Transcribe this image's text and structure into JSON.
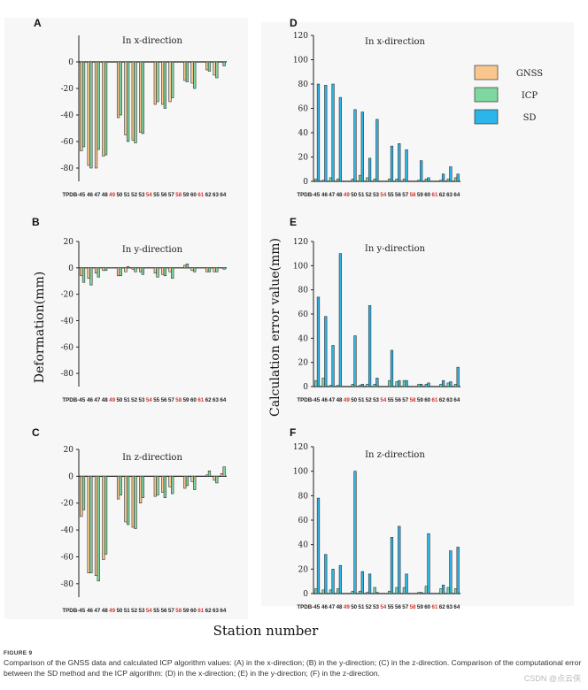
{
  "figure": {
    "label": "FIGURE 9",
    "caption": "Comparison of the GNSS data and calculated ICP algorithm values: (A) in the x-direction; (B) in the y-direction; (C) in the z-direction. Comparison of the computational error between the SD method and the ICP algorithm: (D) in the x-direction; (E) in the y-direction; (F) in the z-direction.",
    "watermark": "CSDN @点云侠",
    "ylabel_left": "Deformation(mm)",
    "ylabel_right": "Calculation error value(mm)",
    "xlabel": "Station number",
    "colors": {
      "GNSS": "#f9c68e",
      "ICP": "#7ed8a0",
      "SD": "#2cb5e8",
      "highlight": "#d0342c"
    },
    "legend": [
      "GNSS",
      "ICP",
      "SD"
    ]
  },
  "chart_data": [
    {
      "type": "bar",
      "panel": "A",
      "title": "In x-direction",
      "categories": [
        "TPDB-45",
        "46",
        "47",
        "48",
        "49",
        "50",
        "51",
        "52",
        "53",
        "54",
        "55",
        "56",
        "57",
        "58",
        "59",
        "60",
        "61",
        "62",
        "63",
        "64"
      ],
      "highlight_categories": [
        "49",
        "54",
        "58",
        "61"
      ],
      "ylim": [
        -90,
        20
      ],
      "yticks": [
        -80,
        -60,
        -40,
        -20,
        0
      ],
      "series": [
        {
          "name": "GNSS",
          "values": [
            -67,
            -78,
            -80,
            -71,
            0,
            -42,
            -55,
            -59,
            -53,
            0,
            -32,
            -32,
            -30,
            0,
            -14,
            -16,
            0,
            -6,
            -10,
            0
          ]
        },
        {
          "name": "ICP",
          "values": [
            -64,
            -80,
            -66,
            -70,
            0,
            -40,
            -60,
            -61,
            -54,
            0,
            -30,
            -35,
            -27,
            0,
            -15,
            -20,
            0,
            -7,
            -12,
            -3
          ]
        }
      ]
    },
    {
      "type": "bar",
      "panel": "B",
      "title": "In y-direction",
      "categories": [
        "TPDB-45",
        "46",
        "47",
        "48",
        "49",
        "50",
        "51",
        "52",
        "53",
        "54",
        "55",
        "56",
        "57",
        "58",
        "59",
        "60",
        "61",
        "62",
        "63",
        "64"
      ],
      "highlight_categories": [
        "49",
        "54",
        "58",
        "61"
      ],
      "ylim": [
        -90,
        20
      ],
      "yticks": [
        -80,
        -60,
        -40,
        -20,
        0,
        20
      ],
      "series": [
        {
          "name": "GNSS",
          "values": [
            -6,
            -8,
            -4,
            -2,
            0,
            -6,
            -3,
            -1,
            -3,
            0,
            -4,
            -5,
            -3,
            0,
            2,
            -2,
            0,
            -3,
            -3,
            0
          ]
        },
        {
          "name": "ICP",
          "values": [
            -11,
            -13,
            -7,
            -2,
            0,
            -6,
            1,
            -3,
            -5,
            0,
            -7,
            -6,
            -8,
            0,
            3,
            -3,
            0,
            -3,
            -3,
            -1
          ]
        }
      ]
    },
    {
      "type": "bar",
      "panel": "C",
      "title": "In z-direction",
      "categories": [
        "TPDB-45",
        "46",
        "47",
        "48",
        "49",
        "50",
        "51",
        "52",
        "53",
        "54",
        "55",
        "56",
        "57",
        "58",
        "59",
        "60",
        "61",
        "62",
        "63",
        "64"
      ],
      "highlight_categories": [
        "49",
        "54",
        "58",
        "61"
      ],
      "ylim": [
        -90,
        20
      ],
      "yticks": [
        -80,
        -60,
        -40,
        -20,
        0,
        20
      ],
      "series": [
        {
          "name": "GNSS",
          "values": [
            -30,
            -72,
            -74,
            -62,
            0,
            -17,
            -34,
            -38,
            -20,
            0,
            -15,
            -12,
            -8,
            0,
            -9,
            -4,
            0,
            1,
            -3,
            2
          ]
        },
        {
          "name": "ICP",
          "values": [
            -25,
            -72,
            -78,
            -58,
            0,
            -14,
            -36,
            -39,
            -16,
            0,
            -14,
            -16,
            -13,
            0,
            -7,
            -10,
            0,
            4,
            -5,
            7
          ]
        }
      ]
    },
    {
      "type": "bar",
      "panel": "D",
      "title": "In x-direction",
      "categories": [
        "TPDB-45",
        "46",
        "47",
        "48",
        "49",
        "50",
        "51",
        "52",
        "53",
        "54",
        "55",
        "56",
        "57",
        "58",
        "59",
        "60",
        "61",
        "62",
        "63",
        "64"
      ],
      "highlight_categories": [
        "49",
        "54",
        "58",
        "61"
      ],
      "ylim": [
        0,
        120
      ],
      "yticks": [
        0,
        20,
        40,
        60,
        80,
        100,
        120
      ],
      "series": [
        {
          "name": "ICP",
          "values": [
            2,
            1,
            3,
            2,
            0,
            2,
            5,
            3,
            2,
            0,
            2,
            2,
            2,
            0,
            1,
            2,
            0,
            1,
            2,
            3
          ]
        },
        {
          "name": "SD",
          "values": [
            80,
            79,
            80,
            69,
            0,
            59,
            57,
            19,
            51,
            0,
            29,
            31,
            26,
            0,
            17,
            3,
            0,
            6,
            12,
            6
          ]
        }
      ]
    },
    {
      "type": "bar",
      "panel": "E",
      "title": "In y-direction",
      "categories": [
        "TPDB-45",
        "46",
        "47",
        "48",
        "49",
        "50",
        "51",
        "52",
        "53",
        "54",
        "55",
        "56",
        "57",
        "58",
        "59",
        "60",
        "61",
        "62",
        "63",
        "64"
      ],
      "highlight_categories": [
        "49",
        "54",
        "58",
        "61"
      ],
      "ylim": [
        0,
        120
      ],
      "yticks": [
        0,
        20,
        40,
        60,
        80,
        100,
        120
      ],
      "series": [
        {
          "name": "ICP",
          "values": [
            5,
            7,
            1,
            1,
            0,
            2,
            1,
            2,
            2,
            0,
            5,
            4,
            5,
            0,
            2,
            2,
            0,
            2,
            3,
            2
          ]
        },
        {
          "name": "SD",
          "values": [
            74,
            58,
            34,
            110,
            0,
            42,
            2,
            67,
            7,
            0,
            30,
            5,
            5,
            0,
            2,
            3,
            0,
            5,
            4,
            16
          ]
        }
      ]
    },
    {
      "type": "bar",
      "panel": "F",
      "title": "In z-direction",
      "categories": [
        "TPDB-45",
        "46",
        "47",
        "48",
        "49",
        "50",
        "51",
        "52",
        "53",
        "54",
        "55",
        "56",
        "57",
        "58",
        "59",
        "60",
        "61",
        "62",
        "63",
        "64"
      ],
      "highlight_categories": [
        "49",
        "54",
        "58",
        "61"
      ],
      "ylim": [
        0,
        120
      ],
      "yticks": [
        0,
        20,
        40,
        60,
        80,
        100,
        120
      ],
      "series": [
        {
          "name": "ICP",
          "values": [
            4,
            3,
            3,
            4,
            0,
            2,
            2,
            1,
            5,
            0,
            2,
            5,
            5,
            0,
            1,
            6,
            0,
            4,
            5,
            4
          ]
        },
        {
          "name": "SD",
          "values": [
            78,
            32,
            20,
            23,
            0,
            100,
            18,
            16,
            1,
            0,
            46,
            55,
            16,
            0,
            1,
            49,
            0,
            7,
            35,
            38
          ]
        }
      ]
    }
  ]
}
